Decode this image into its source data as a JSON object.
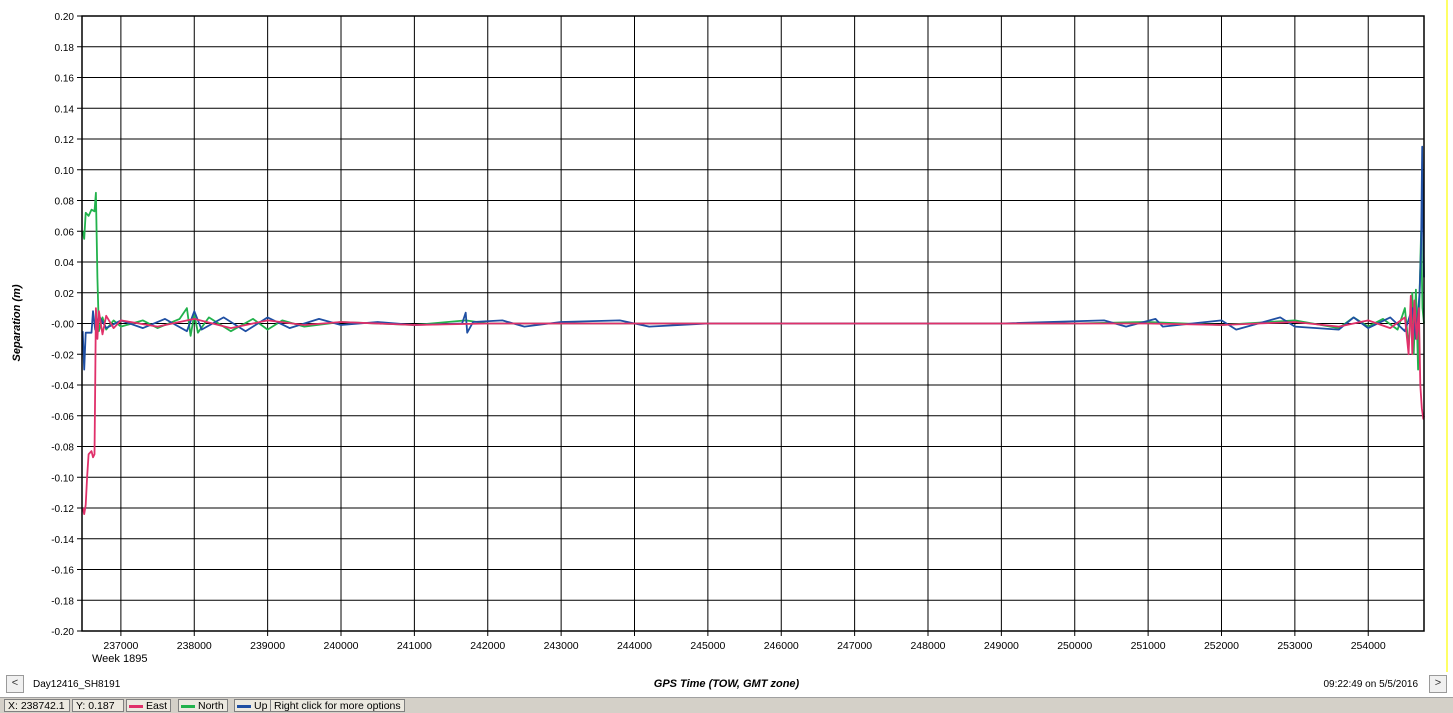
{
  "chart_data": {
    "type": "line",
    "title": "",
    "xlabel": "GPS Time (TOW, GMT zone)",
    "ylabel": "Separation (m)",
    "xlim": [
      236470,
      254760
    ],
    "ylim": [
      -0.2,
      0.2
    ],
    "x_ticks": [
      237000,
      238000,
      239000,
      240000,
      241000,
      242000,
      243000,
      244000,
      245000,
      246000,
      247000,
      248000,
      249000,
      250000,
      251000,
      252000,
      253000,
      254000
    ],
    "y_ticks": [
      "0.20",
      "0.18",
      "0.16",
      "0.14",
      "0.12",
      "0.10",
      "0.08",
      "0.06",
      "0.04",
      "0.02",
      "-0.00",
      "-0.02",
      "-0.04",
      "-0.06",
      "-0.08",
      "-0.10",
      "-0.12",
      "-0.14",
      "-0.16",
      "-0.18",
      "-0.20"
    ],
    "x_sublabel": "Week 1895",
    "grid": true,
    "series": [
      {
        "name": "North",
        "color": "#22b24c",
        "points": [
          [
            236480,
            0.06
          ],
          [
            236500,
            0.055
          ],
          [
            236520,
            0.072
          ],
          [
            236560,
            0.07
          ],
          [
            236600,
            0.074
          ],
          [
            236640,
            0.073
          ],
          [
            236660,
            0.085
          ],
          [
            236680,
            0.03
          ],
          [
            236700,
            -0.005
          ],
          [
            236750,
            0.004
          ],
          [
            236800,
            -0.004
          ],
          [
            236900,
            0.002
          ],
          [
            237000,
            -0.002
          ],
          [
            237300,
            0.002
          ],
          [
            237500,
            -0.003
          ],
          [
            237800,
            0.003
          ],
          [
            237900,
            0.01
          ],
          [
            237950,
            -0.008
          ],
          [
            238000,
            0.006
          ],
          [
            238050,
            -0.006
          ],
          [
            238200,
            0.004
          ],
          [
            238500,
            -0.005
          ],
          [
            238800,
            0.003
          ],
          [
            239000,
            -0.004
          ],
          [
            239200,
            0.002
          ],
          [
            239500,
            -0.002
          ],
          [
            240000,
            0.001
          ],
          [
            241000,
            -0.001
          ],
          [
            241700,
            0.002
          ],
          [
            242000,
            0.0
          ],
          [
            245000,
            0.0
          ],
          [
            248000,
            0.0
          ],
          [
            250000,
            0.0
          ],
          [
            251000,
            0.001
          ],
          [
            252000,
            -0.001
          ],
          [
            253000,
            0.002
          ],
          [
            253600,
            -0.003
          ],
          [
            253800,
            0.004
          ],
          [
            254000,
            -0.002
          ],
          [
            254200,
            0.003
          ],
          [
            254400,
            -0.004
          ],
          [
            254500,
            0.01
          ],
          [
            254550,
            -0.015
          ],
          [
            254600,
            0.02
          ],
          [
            254620,
            -0.02
          ],
          [
            254650,
            0.022
          ],
          [
            254680,
            -0.03
          ],
          [
            254700,
            0.02
          ],
          [
            254720,
            0.06
          ],
          [
            254740,
            0.01
          ],
          [
            254760,
            0.0
          ]
        ]
      },
      {
        "name": "Up",
        "color": "#1f4fa3",
        "points": [
          [
            236480,
            -0.005
          ],
          [
            236500,
            -0.03
          ],
          [
            236520,
            -0.006
          ],
          [
            236560,
            -0.006
          ],
          [
            236600,
            -0.006
          ],
          [
            236620,
            0.008
          ],
          [
            236650,
            -0.004
          ],
          [
            236700,
            0.005
          ],
          [
            236800,
            -0.003
          ],
          [
            237000,
            0.002
          ],
          [
            237300,
            -0.003
          ],
          [
            237600,
            0.003
          ],
          [
            237900,
            -0.005
          ],
          [
            238000,
            0.008
          ],
          [
            238100,
            -0.004
          ],
          [
            238400,
            0.004
          ],
          [
            238700,
            -0.005
          ],
          [
            239000,
            0.004
          ],
          [
            239300,
            -0.003
          ],
          [
            239700,
            0.003
          ],
          [
            240000,
            -0.001
          ],
          [
            240500,
            0.001
          ],
          [
            241000,
            -0.001
          ],
          [
            241650,
            0.0
          ],
          [
            241700,
            0.007
          ],
          [
            241720,
            -0.006
          ],
          [
            241800,
            0.001
          ],
          [
            242200,
            0.002
          ],
          [
            242500,
            -0.002
          ],
          [
            243000,
            0.001
          ],
          [
            243800,
            0.002
          ],
          [
            244200,
            -0.002
          ],
          [
            245000,
            0.0
          ],
          [
            249000,
            0.0
          ],
          [
            250400,
            0.002
          ],
          [
            250700,
            -0.002
          ],
          [
            251100,
            0.003
          ],
          [
            251200,
            -0.002
          ],
          [
            252000,
            0.002
          ],
          [
            252200,
            -0.004
          ],
          [
            252800,
            0.004
          ],
          [
            253000,
            -0.002
          ],
          [
            253600,
            -0.004
          ],
          [
            253800,
            0.004
          ],
          [
            254000,
            -0.003
          ],
          [
            254300,
            0.004
          ],
          [
            254500,
            -0.005
          ],
          [
            254600,
            0.01
          ],
          [
            254650,
            -0.01
          ],
          [
            254700,
            0.02
          ],
          [
            254720,
            0.05
          ],
          [
            254735,
            0.115
          ],
          [
            254745,
            0.07
          ],
          [
            254760,
            0.03
          ]
        ]
      },
      {
        "name": "East",
        "color": "#e0306a",
        "points": [
          [
            236480,
            -0.12
          ],
          [
            236500,
            -0.124
          ],
          [
            236520,
            -0.118
          ],
          [
            236540,
            -0.1
          ],
          [
            236560,
            -0.085
          ],
          [
            236600,
            -0.083
          ],
          [
            236620,
            -0.087
          ],
          [
            236640,
            -0.085
          ],
          [
            236650,
            -0.04
          ],
          [
            236660,
            0.01
          ],
          [
            236680,
            -0.01
          ],
          [
            236700,
            0.008
          ],
          [
            236750,
            -0.007
          ],
          [
            236800,
            0.005
          ],
          [
            236900,
            -0.003
          ],
          [
            237000,
            0.002
          ],
          [
            237500,
            -0.002
          ],
          [
            238000,
            0.003
          ],
          [
            238500,
            -0.003
          ],
          [
            239000,
            0.002
          ],
          [
            239500,
            -0.001
          ],
          [
            240000,
            0.001
          ],
          [
            241000,
            -0.001
          ],
          [
            242000,
            0.0
          ],
          [
            245000,
            0.0
          ],
          [
            248000,
            0.0
          ],
          [
            250000,
            0.0
          ],
          [
            251000,
            0.0
          ],
          [
            252000,
            -0.001
          ],
          [
            253000,
            0.001
          ],
          [
            253600,
            -0.002
          ],
          [
            254000,
            0.002
          ],
          [
            254300,
            -0.003
          ],
          [
            254500,
            0.004
          ],
          [
            254550,
            -0.02
          ],
          [
            254580,
            0.018
          ],
          [
            254600,
            -0.02
          ],
          [
            254630,
            0.015
          ],
          [
            254660,
            -0.01
          ],
          [
            254690,
            0.01
          ],
          [
            254710,
            -0.04
          ],
          [
            254730,
            -0.055
          ],
          [
            254750,
            -0.062
          ],
          [
            254760,
            -0.06
          ]
        ]
      }
    ]
  },
  "nav": {
    "prev_label": "<",
    "next_label": ">",
    "dataset_name": "Day12416_SH8191",
    "timestamp": "09:22:49 on 5/5/2016"
  },
  "status": {
    "x_readout": "X: 238742.1",
    "y_readout": "Y: 0.187",
    "legend": [
      {
        "label": "East",
        "color": "#e0306a"
      },
      {
        "label": "North",
        "color": "#22b24c"
      },
      {
        "label": "Up",
        "color": "#1f4fa3"
      }
    ],
    "hint": "Right click for more options"
  }
}
